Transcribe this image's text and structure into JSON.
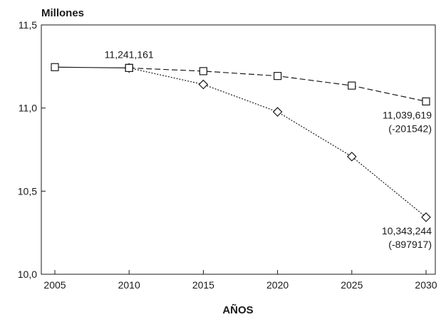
{
  "chart_data": {
    "type": "line",
    "title": "",
    "ylabel": "Millones",
    "xlabel": "AÑOS",
    "x": [
      2005,
      2010,
      2015,
      2020,
      2025,
      2030
    ],
    "xlim": [
      2005,
      2030
    ],
    "ylim": [
      10.0,
      11.5
    ],
    "x_ticks": [
      "2005",
      "2010",
      "2015",
      "2020",
      "2025",
      "2030"
    ],
    "y_ticks": [
      {
        "value": 10.0,
        "label": "10,0"
      },
      {
        "value": 10.5,
        "label": "10,5"
      },
      {
        "value": 11.0,
        "label": "11,0"
      },
      {
        "value": 11.5,
        "label": "11,5"
      }
    ],
    "grid": false,
    "series": [
      {
        "style": "solid",
        "marker": "square",
        "points": [
          [
            2005,
            11.246
          ],
          [
            2010,
            11.241161
          ]
        ]
      },
      {
        "style": "dashed",
        "marker": "square",
        "points": [
          [
            2010,
            11.241161
          ],
          [
            2015,
            11.222
          ],
          [
            2020,
            11.193
          ],
          [
            2025,
            11.135
          ],
          [
            2030,
            11.039619
          ]
        ]
      },
      {
        "style": "dotted",
        "marker": "diamond",
        "points": [
          [
            2010,
            11.241161
          ],
          [
            2015,
            11.142
          ],
          [
            2020,
            10.977
          ],
          [
            2025,
            10.708
          ],
          [
            2030,
            10.343244
          ]
        ]
      }
    ],
    "annotations": [
      {
        "x": 2010,
        "y": 11.241161,
        "lines": [
          "11,241,161"
        ],
        "position": "above"
      },
      {
        "x": 2030,
        "y": 11.039619,
        "lines": [
          "11,039,619",
          "(-201542)"
        ],
        "position": "below"
      },
      {
        "x": 2030,
        "y": 10.343244,
        "lines": [
          "10,343,244",
          "(-897917)"
        ],
        "position": "below"
      }
    ]
  }
}
